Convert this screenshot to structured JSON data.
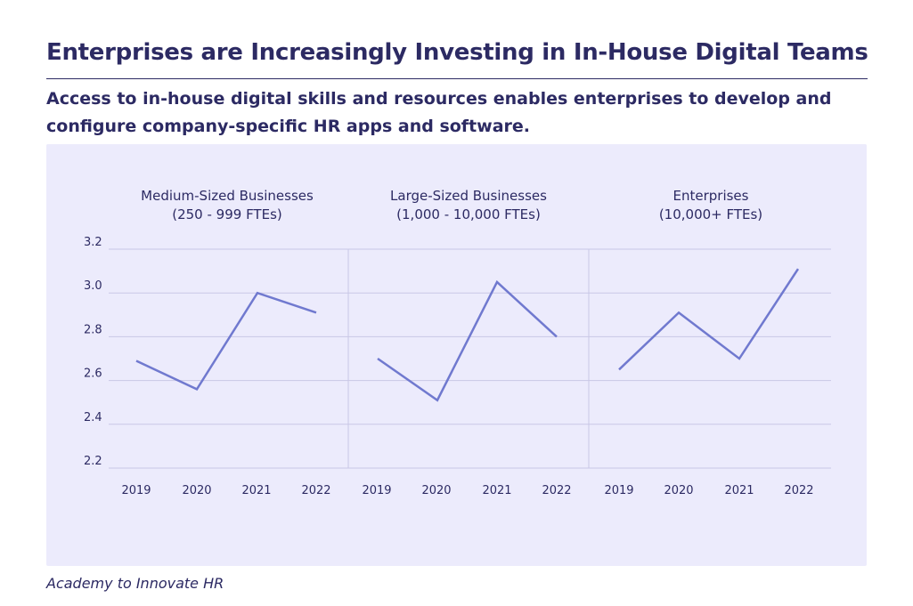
{
  "header": {
    "title": "Enterprises are Increasingly Investing in In-House Digital Teams",
    "subtitle": "Access to in-house digital skills and resources enables enterprises to develop and configure company-specific HR apps and software."
  },
  "footer": {
    "source": "Academy to Innovate HR"
  },
  "colors": {
    "line": "#7079cf",
    "grid": "#c9c7e6",
    "panel_bg": "#ecebfc",
    "text": "#2c2a63"
  },
  "chart_data": {
    "type": "line",
    "ylim": [
      2.2,
      3.2
    ],
    "yticks": [
      "3.2",
      "3.0",
      "2.8",
      "2.6",
      "2.4",
      "2.2"
    ],
    "panels": [
      {
        "title_line1": "Medium-Sized Businesses",
        "title_line2": "(250 - 999 FTEs)",
        "categories": [
          "2019",
          "2020",
          "2021",
          "2022"
        ],
        "values": [
          2.69,
          2.56,
          3.0,
          2.91
        ]
      },
      {
        "title_line1": "Large-Sized Businesses",
        "title_line2": "(1,000 - 10,000 FTEs)",
        "categories": [
          "2019",
          "2020",
          "2021",
          "2022"
        ],
        "values": [
          2.7,
          2.51,
          3.05,
          2.8
        ]
      },
      {
        "title_line1": "Enterprises",
        "title_line2": "(10,000+ FTEs)",
        "categories": [
          "2019",
          "2020",
          "2021",
          "2022"
        ],
        "values": [
          2.65,
          2.91,
          2.7,
          3.11
        ]
      }
    ]
  }
}
